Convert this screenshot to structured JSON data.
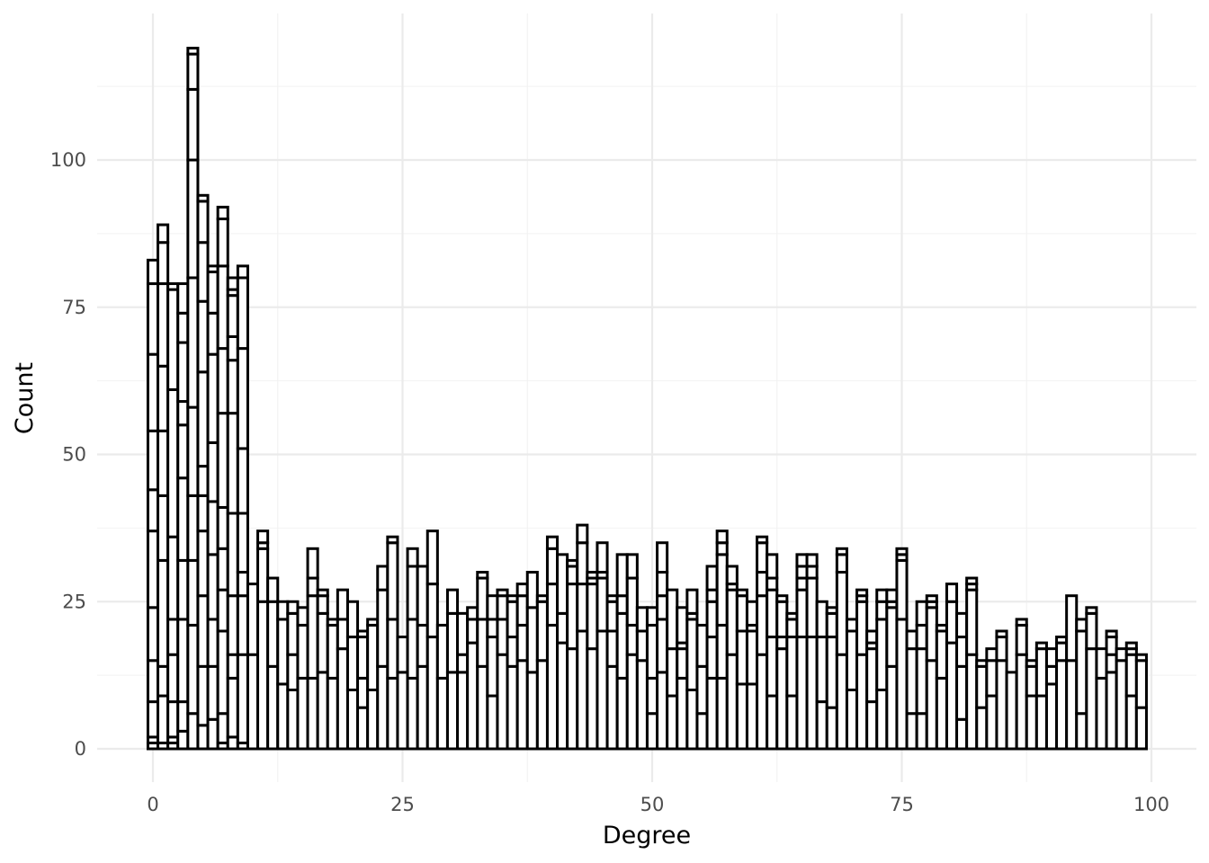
{
  "chart_data": {
    "type": "bar",
    "style": "stacked histogram, white fill, black outlines",
    "xlabel": "Degree",
    "ylabel": "Count",
    "xlim": [
      -5,
      105
    ],
    "ylim": [
      -6,
      122
    ],
    "x_ticks": [
      0,
      25,
      50,
      75,
      100
    ],
    "y_ticks": [
      0,
      25,
      50,
      75,
      100
    ],
    "grid": true,
    "colors": {
      "bar_fill": "#ffffff",
      "bar_stroke": "#000000",
      "grid": "#ebebeb",
      "tick_text": "#4d4d4d"
    },
    "bins": [
      {
        "x": 0,
        "stack": [
          1,
          2,
          8,
          15,
          24,
          37,
          44,
          54,
          67,
          79,
          83
        ]
      },
      {
        "x": 1,
        "stack": [
          1,
          9,
          14,
          32,
          43,
          54,
          65,
          79,
          86,
          89
        ]
      },
      {
        "x": 2,
        "stack": [
          1,
          2,
          8,
          16,
          22,
          36,
          61,
          78,
          79
        ]
      },
      {
        "x": 3,
        "stack": [
          3,
          8,
          22,
          32,
          46,
          55,
          59,
          69,
          74,
          79
        ]
      },
      {
        "x": 4,
        "stack": [
          6,
          21,
          32,
          43,
          58,
          80,
          100,
          112,
          118,
          119
        ]
      },
      {
        "x": 5,
        "stack": [
          4,
          14,
          26,
          37,
          43,
          48,
          64,
          76,
          86,
          93,
          94
        ]
      },
      {
        "x": 6,
        "stack": [
          5,
          14,
          22,
          33,
          42,
          52,
          67,
          74,
          81,
          82
        ]
      },
      {
        "x": 7,
        "stack": [
          1,
          6,
          20,
          27,
          34,
          41,
          57,
          68,
          82,
          90,
          92
        ]
      },
      {
        "x": 8,
        "stack": [
          2,
          12,
          16,
          26,
          40,
          57,
          66,
          70,
          77,
          78,
          80
        ]
      },
      {
        "x": 9,
        "stack": [
          1,
          16,
          26,
          30,
          40,
          51,
          68,
          80,
          82
        ]
      },
      {
        "x": 10,
        "stack": [
          16,
          28
        ]
      },
      {
        "x": 11,
        "stack": [
          25,
          34,
          35,
          37
        ]
      },
      {
        "x": 12,
        "stack": [
          14,
          25,
          29
        ]
      },
      {
        "x": 13,
        "stack": [
          11,
          22,
          25
        ]
      },
      {
        "x": 14,
        "stack": [
          10,
          16,
          23,
          25
        ]
      },
      {
        "x": 15,
        "stack": [
          12,
          21,
          24
        ]
      },
      {
        "x": 16,
        "stack": [
          12,
          26,
          29,
          34
        ]
      },
      {
        "x": 17,
        "stack": [
          13,
          23,
          26,
          27
        ]
      },
      {
        "x": 18,
        "stack": [
          12,
          21,
          22
        ]
      },
      {
        "x": 19,
        "stack": [
          17,
          22,
          27
        ]
      },
      {
        "x": 20,
        "stack": [
          10,
          19,
          25
        ]
      },
      {
        "x": 21,
        "stack": [
          7,
          12,
          19,
          20
        ]
      },
      {
        "x": 22,
        "stack": [
          10,
          21,
          22
        ]
      },
      {
        "x": 23,
        "stack": [
          14,
          27,
          31
        ]
      },
      {
        "x": 24,
        "stack": [
          12,
          22,
          35,
          36
        ]
      },
      {
        "x": 25,
        "stack": [
          13,
          19
        ]
      },
      {
        "x": 26,
        "stack": [
          12,
          22,
          31,
          34
        ]
      },
      {
        "x": 27,
        "stack": [
          14,
          21,
          31
        ]
      },
      {
        "x": 28,
        "stack": [
          19,
          28,
          37
        ]
      },
      {
        "x": 29,
        "stack": [
          12,
          21
        ]
      },
      {
        "x": 30,
        "stack": [
          13,
          23,
          27
        ]
      },
      {
        "x": 31,
        "stack": [
          13,
          16,
          23
        ]
      },
      {
        "x": 32,
        "stack": [
          18,
          22,
          24
        ]
      },
      {
        "x": 33,
        "stack": [
          14,
          22,
          29,
          30
        ]
      },
      {
        "x": 34,
        "stack": [
          9,
          19,
          22,
          26
        ]
      },
      {
        "x": 35,
        "stack": [
          16,
          22,
          26,
          27
        ]
      },
      {
        "x": 36,
        "stack": [
          14,
          19,
          25,
          26
        ]
      },
      {
        "x": 37,
        "stack": [
          15,
          21,
          26,
          28
        ]
      },
      {
        "x": 38,
        "stack": [
          13,
          24,
          30
        ]
      },
      {
        "x": 39,
        "stack": [
          15,
          25,
          26
        ]
      },
      {
        "x": 40,
        "stack": [
          21,
          28,
          34,
          36
        ]
      },
      {
        "x": 41,
        "stack": [
          18,
          23,
          33
        ]
      },
      {
        "x": 42,
        "stack": [
          17,
          28,
          31,
          32
        ]
      },
      {
        "x": 43,
        "stack": [
          20,
          28,
          35,
          38
        ]
      },
      {
        "x": 44,
        "stack": [
          17,
          28,
          29,
          30
        ]
      },
      {
        "x": 45,
        "stack": [
          20,
          29,
          30,
          35
        ]
      },
      {
        "x": 46,
        "stack": [
          14,
          20,
          25,
          26
        ]
      },
      {
        "x": 47,
        "stack": [
          12,
          23,
          26,
          33
        ]
      },
      {
        "x": 48,
        "stack": [
          16,
          21,
          29,
          33
        ]
      },
      {
        "x": 49,
        "stack": [
          15,
          20,
          24
        ]
      },
      {
        "x": 50,
        "stack": [
          6,
          12,
          21,
          24
        ]
      },
      {
        "x": 51,
        "stack": [
          13,
          22,
          26,
          30,
          35
        ]
      },
      {
        "x": 52,
        "stack": [
          9,
          17,
          27
        ]
      },
      {
        "x": 53,
        "stack": [
          12,
          17,
          18,
          24
        ]
      },
      {
        "x": 54,
        "stack": [
          10,
          22,
          23,
          27
        ]
      },
      {
        "x": 55,
        "stack": [
          6,
          14,
          21
        ]
      },
      {
        "x": 56,
        "stack": [
          12,
          19,
          25,
          27,
          31
        ]
      },
      {
        "x": 57,
        "stack": [
          12,
          21,
          33,
          35,
          37
        ]
      },
      {
        "x": 58,
        "stack": [
          16,
          27,
          28,
          31
        ]
      },
      {
        "x": 59,
        "stack": [
          11,
          20,
          26,
          27
        ]
      },
      {
        "x": 60,
        "stack": [
          11,
          20,
          21,
          25
        ]
      },
      {
        "x": 61,
        "stack": [
          16,
          26,
          30,
          35,
          36
        ]
      },
      {
        "x": 62,
        "stack": [
          9,
          19,
          27,
          29,
          33
        ]
      },
      {
        "x": 63,
        "stack": [
          17,
          19,
          25,
          26
        ]
      },
      {
        "x": 64,
        "stack": [
          9,
          19,
          22,
          23
        ]
      },
      {
        "x": 65,
        "stack": [
          19,
          27,
          29,
          31,
          33
        ]
      },
      {
        "x": 66,
        "stack": [
          19,
          29,
          31,
          33
        ]
      },
      {
        "x": 67,
        "stack": [
          8,
          19,
          25
        ]
      },
      {
        "x": 68,
        "stack": [
          7,
          19,
          23,
          24
        ]
      },
      {
        "x": 69,
        "stack": [
          16,
          30,
          33,
          34
        ]
      },
      {
        "x": 70,
        "stack": [
          10,
          20,
          22
        ]
      },
      {
        "x": 71,
        "stack": [
          16,
          25,
          26,
          27
        ]
      },
      {
        "x": 72,
        "stack": [
          8,
          17,
          18,
          20
        ]
      },
      {
        "x": 73,
        "stack": [
          10,
          22,
          25,
          27
        ]
      },
      {
        "x": 74,
        "stack": [
          14,
          24,
          25,
          27
        ]
      },
      {
        "x": 75,
        "stack": [
          22,
          32,
          33,
          34
        ]
      },
      {
        "x": 76,
        "stack": [
          6,
          17,
          20
        ]
      },
      {
        "x": 77,
        "stack": [
          6,
          17,
          21,
          25
        ]
      },
      {
        "x": 78,
        "stack": [
          15,
          24,
          25,
          26
        ]
      },
      {
        "x": 79,
        "stack": [
          12,
          20,
          21
        ]
      },
      {
        "x": 80,
        "stack": [
          18,
          25,
          28
        ]
      },
      {
        "x": 81,
        "stack": [
          5,
          14,
          19,
          23
        ]
      },
      {
        "x": 82,
        "stack": [
          16,
          27,
          28,
          29
        ]
      },
      {
        "x": 83,
        "stack": [
          7,
          14,
          15
        ]
      },
      {
        "x": 84,
        "stack": [
          9,
          15,
          17
        ]
      },
      {
        "x": 85,
        "stack": [
          15,
          19,
          20
        ]
      },
      {
        "x": 86,
        "stack": [
          13
        ]
      },
      {
        "x": 87,
        "stack": [
          16,
          21,
          22
        ]
      },
      {
        "x": 88,
        "stack": [
          9,
          14,
          15
        ]
      },
      {
        "x": 89,
        "stack": [
          9,
          17,
          18
        ]
      },
      {
        "x": 90,
        "stack": [
          11,
          14,
          17
        ]
      },
      {
        "x": 91,
        "stack": [
          15,
          18,
          19
        ]
      },
      {
        "x": 92,
        "stack": [
          15,
          26
        ]
      },
      {
        "x": 93,
        "stack": [
          6,
          20,
          22
        ]
      },
      {
        "x": 94,
        "stack": [
          17,
          23,
          24
        ]
      },
      {
        "x": 95,
        "stack": [
          12,
          17
        ]
      },
      {
        "x": 96,
        "stack": [
          13,
          16,
          19,
          20
        ]
      },
      {
        "x": 97,
        "stack": [
          15,
          17
        ]
      },
      {
        "x": 98,
        "stack": [
          9,
          16,
          17,
          18
        ]
      },
      {
        "x": 99,
        "stack": [
          7,
          15,
          16
        ]
      }
    ]
  }
}
